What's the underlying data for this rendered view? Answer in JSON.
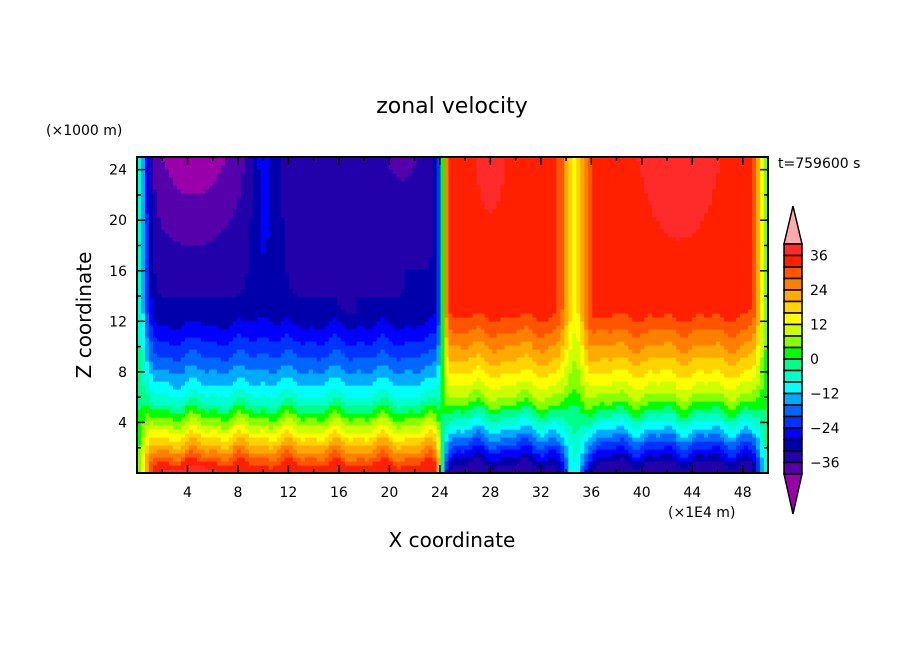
{
  "chart_data": {
    "type": "heatmap",
    "title": "zonal velocity",
    "xlabel": "X coordinate",
    "ylabel": "Z coordinate",
    "x_unit_label": "(×1E4 m)",
    "y_unit_label": "(×1000 m)",
    "time_label": "t=759600 s",
    "xlim": [
      0,
      50
    ],
    "ylim": [
      0,
      25
    ],
    "x_ticks": [
      4,
      8,
      12,
      16,
      20,
      24,
      28,
      32,
      36,
      40,
      44,
      48
    ],
    "y_ticks": [
      4,
      8,
      12,
      16,
      20,
      24
    ],
    "x_minor_step": 2,
    "y_minor_step": 2,
    "colorbar": {
      "levels": [
        40,
        36,
        32,
        28,
        24,
        20,
        16,
        12,
        8,
        4,
        0,
        -4,
        -8,
        -12,
        -16,
        -20,
        -24,
        -28,
        -32,
        -36,
        -40
      ],
      "labels": [
        "36",
        "24",
        "12",
        "0",
        "-12",
        "-24",
        "-36"
      ],
      "label_values": [
        36,
        24,
        12,
        0,
        -12,
        -24,
        -36
      ],
      "colors": [
        "#ff2a2a",
        "#ff2000",
        "#ff5500",
        "#ff7f00",
        "#ffaa00",
        "#ffd400",
        "#ffff00",
        "#ccff00",
        "#88ff00",
        "#00ff00",
        "#00ff88",
        "#00ffcc",
        "#00ffff",
        "#00aaff",
        "#0066ff",
        "#0033ff",
        "#0000ff",
        "#0000aa",
        "#2200aa",
        "#5500aa"
      ],
      "over_color": "#ffaaaa",
      "under_color": "#9900aa"
    },
    "field_description": "Westward flow (negative) aloft for x<24 with strong eastward flow near surface; eastward flow (positive) aloft for x>24 with westward flow near surface; shear layer near z≈5; narrow feature near x≈35",
    "regions": [
      {
        "x": [
          0,
          24
        ],
        "z_upper": -32,
        "z_lower": 32,
        "zero_level": 5.2
      },
      {
        "x": [
          24,
          50
        ],
        "z_upper": 32,
        "z_lower": -32,
        "zero_level": 5.0
      }
    ]
  }
}
